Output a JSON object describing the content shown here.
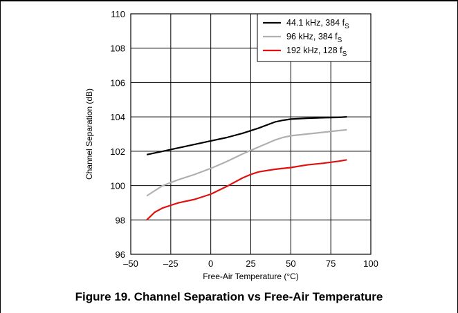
{
  "figure": {
    "caption": "Figure 19. Channel Separation vs Free-Air Temperature"
  },
  "chart_data": {
    "type": "line",
    "title": "",
    "xlabel": "Free-Air Temperature (°C)",
    "ylabel": "Channel Separation (dB)",
    "xlim": [
      -50,
      100
    ],
    "ylim": [
      96,
      110
    ],
    "xticks": [
      "–50",
      "–25",
      "0",
      "25",
      "50",
      "75",
      "100"
    ],
    "yticks": [
      "96",
      "98",
      "100",
      "102",
      "104",
      "106",
      "108",
      "110"
    ],
    "grid": true,
    "legend_position": "top-right",
    "series": [
      {
        "name": "44.1 kHz, 384 fS",
        "legend": {
          "main": "44.1 kHz, 384 f",
          "sub": "S"
        },
        "color": "#000000",
        "x": [
          -40,
          -30,
          -20,
          -10,
          0,
          10,
          20,
          30,
          40,
          45,
          50,
          60,
          70,
          80,
          85
        ],
        "y": [
          101.8,
          102.0,
          102.2,
          102.4,
          102.6,
          102.8,
          103.05,
          103.35,
          103.7,
          103.8,
          103.87,
          103.92,
          103.95,
          103.97,
          104.0
        ]
      },
      {
        "name": "96 kHz, 384 fS",
        "legend": {
          "main": "96  kHz, 384 f",
          "sub": "S"
        },
        "color": "#b0b0b0",
        "x": [
          -40,
          -35,
          -30,
          -20,
          -10,
          0,
          10,
          20,
          30,
          40,
          45,
          50,
          60,
          70,
          80,
          85
        ],
        "y": [
          99.4,
          99.7,
          100.0,
          100.35,
          100.65,
          101.0,
          101.4,
          101.85,
          102.25,
          102.65,
          102.8,
          102.9,
          103.0,
          103.1,
          103.2,
          103.25
        ]
      },
      {
        "name": "192 kHz, 128 fS",
        "legend": {
          "main": "192 kHz, 128 f",
          "sub": "S"
        },
        "color": "#e01010",
        "x": [
          -40,
          -35,
          -30,
          -20,
          -10,
          0,
          10,
          20,
          25,
          30,
          40,
          50,
          60,
          70,
          80,
          85
        ],
        "y": [
          98.0,
          98.45,
          98.7,
          99.0,
          99.2,
          99.5,
          99.95,
          100.45,
          100.65,
          100.8,
          100.95,
          101.05,
          101.2,
          101.3,
          101.42,
          101.5
        ]
      }
    ]
  }
}
